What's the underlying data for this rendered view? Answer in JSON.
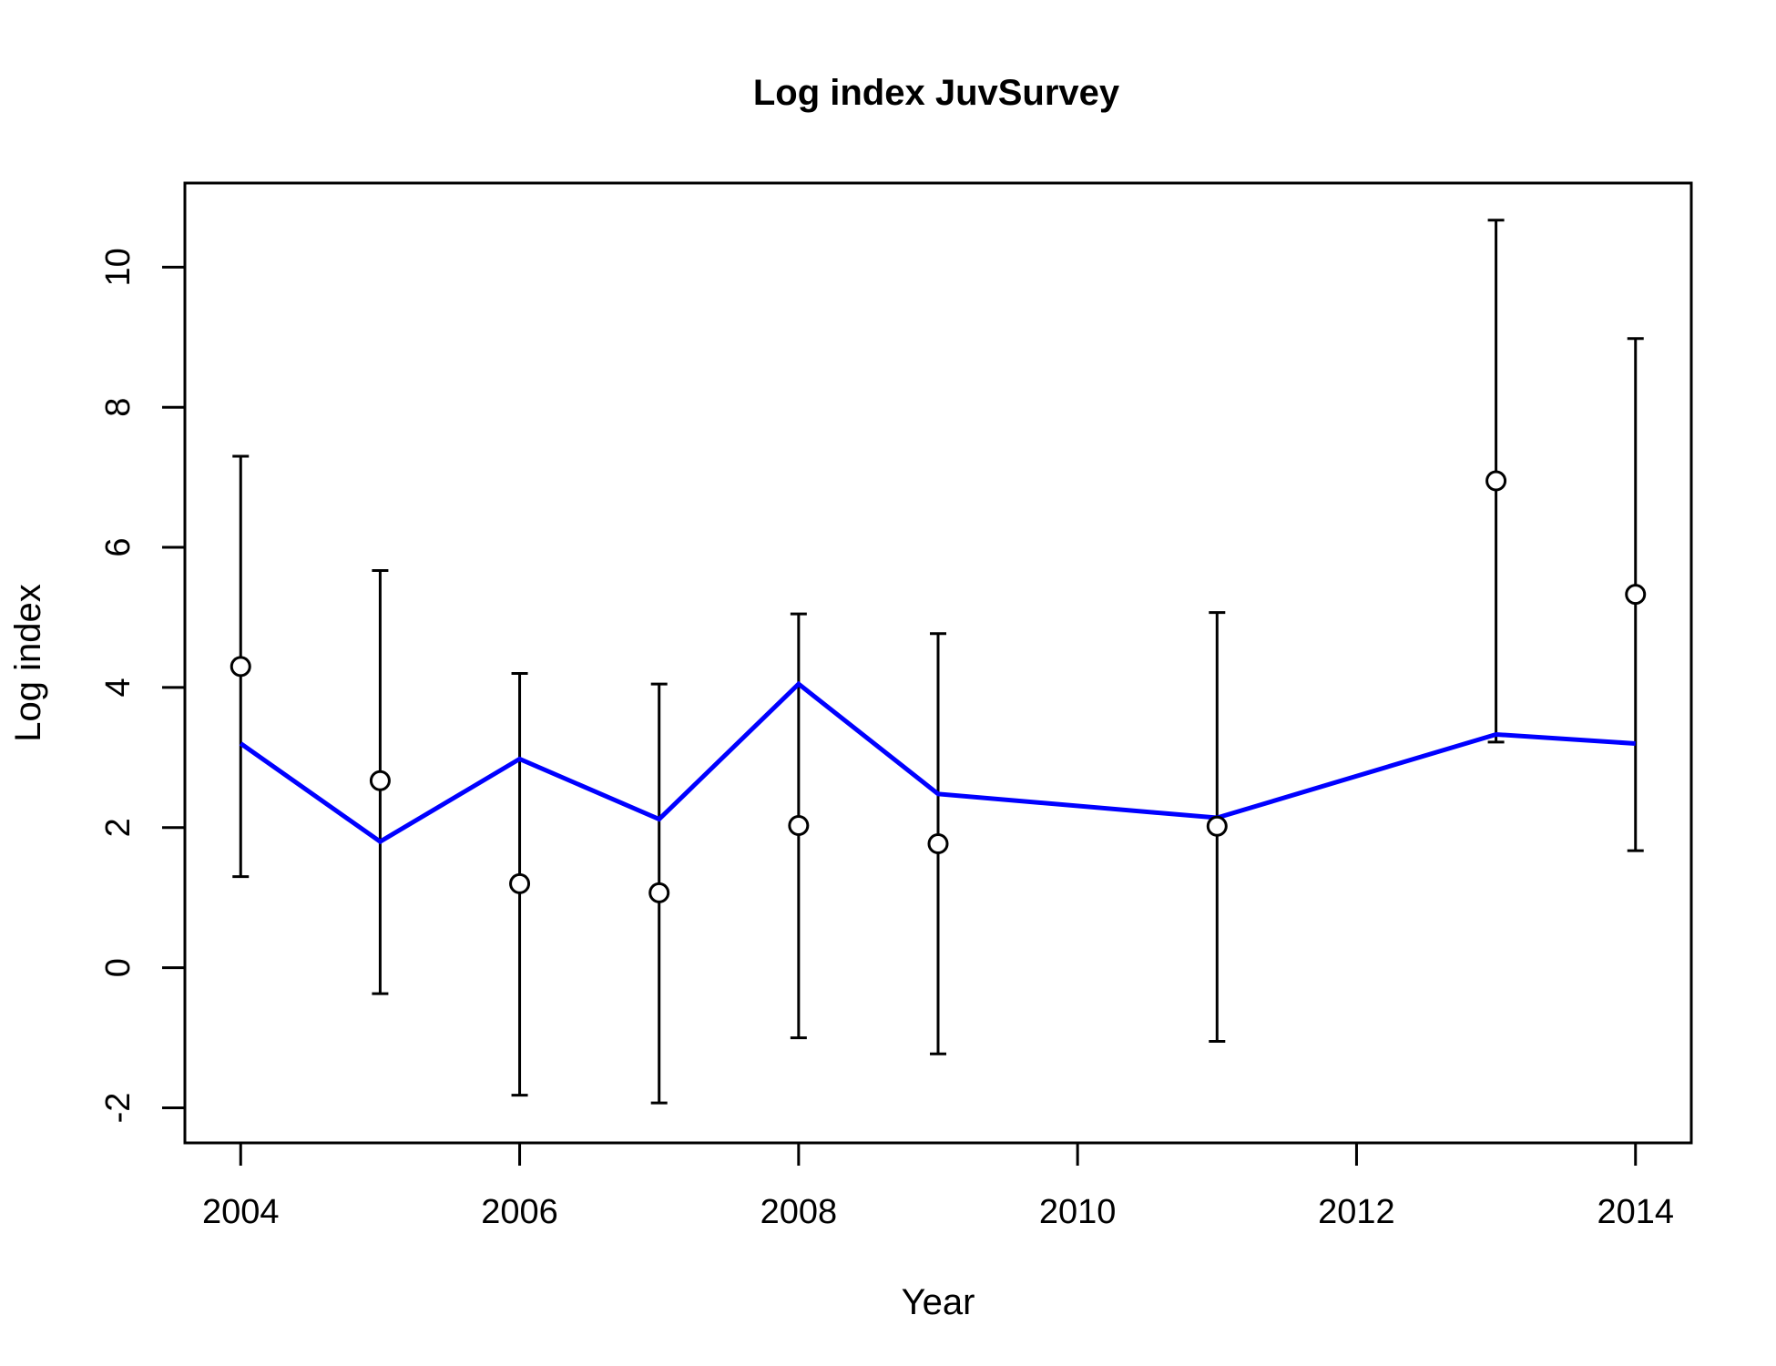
{
  "chart_data": {
    "type": "line",
    "title": "Log index JuvSurvey",
    "xlabel": "Year",
    "ylabel": "Log index",
    "xlim": [
      2003.6,
      2014.4
    ],
    "ylim": [
      -2.5,
      11.2
    ],
    "x_ticks": [
      2004,
      2006,
      2008,
      2010,
      2012,
      2014
    ],
    "x_tick_labels": [
      "2004",
      "2006",
      "2008",
      "2010",
      "2012",
      "2014"
    ],
    "y_ticks": [
      -2,
      0,
      2,
      4,
      6,
      8,
      10
    ],
    "y_tick_labels": [
      "-2",
      "0",
      "2",
      "4",
      "6",
      "8",
      "10"
    ],
    "grid": false,
    "colors": {
      "fitted": "#0000ff",
      "observed": "#000000"
    },
    "x": [
      2004,
      2005,
      2006,
      2007,
      2008,
      2009,
      2011,
      2013,
      2014
    ],
    "series": [
      {
        "kind": "observed-points-with-error-bars",
        "values": [
          4.3,
          2.67,
          1.2,
          1.07,
          2.03,
          1.77,
          2.02,
          6.95,
          5.33
        ],
        "lower": [
          1.3,
          -0.37,
          -1.82,
          -1.93,
          -1.0,
          -1.23,
          -1.05,
          3.22,
          1.67
        ],
        "upper": [
          7.3,
          5.67,
          4.2,
          4.05,
          5.05,
          4.77,
          5.07,
          10.67,
          8.98
        ]
      },
      {
        "kind": "fitted-line",
        "values": [
          3.2,
          1.8,
          2.98,
          2.12,
          4.05,
          2.48,
          2.14,
          3.33,
          3.2
        ]
      }
    ]
  }
}
